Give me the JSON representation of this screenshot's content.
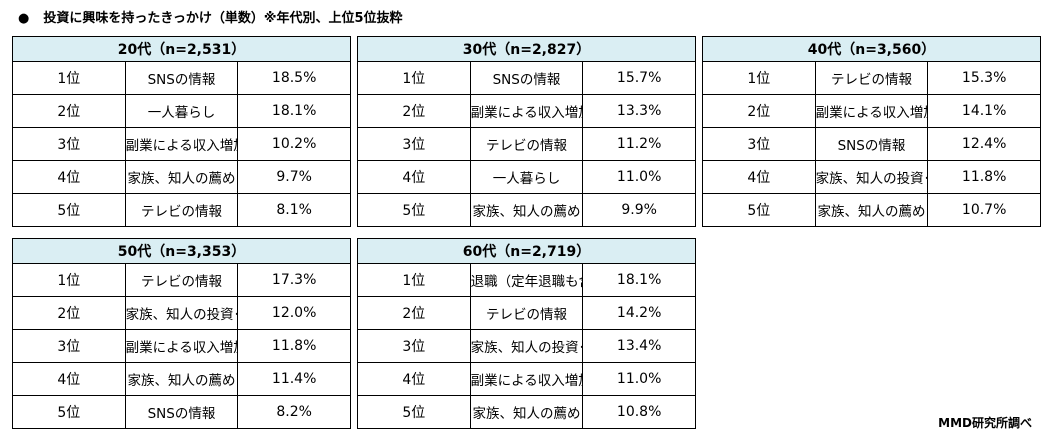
{
  "title": "投資に興味を持ったきっかけ（単数）※年代別、上位5位抜粋",
  "credit": "MMD研究所調べ",
  "colors": {
    "header_bg": "#DAEEF3",
    "border": "#000000"
  },
  "tables": [
    {
      "header": "20代（n=2,531）",
      "rows": [
        [
          "1位",
          "SNSの情報",
          "18.5%"
        ],
        [
          "2位",
          "一人暮らし",
          "18.1%"
        ],
        [
          "3位",
          "副業による収入増加",
          "10.2%"
        ],
        [
          "4位",
          "家族、知人の薦め",
          "9.7%"
        ],
        [
          "5位",
          "テレビの情報",
          "8.1%"
        ]
      ]
    },
    {
      "header": "30代（n=2,827）",
      "rows": [
        [
          "1位",
          "SNSの情報",
          "15.7%"
        ],
        [
          "2位",
          "副業による収入増加",
          "13.3%"
        ],
        [
          "3位",
          "テレビの情報",
          "11.2%"
        ],
        [
          "4位",
          "一人暮らし",
          "11.0%"
        ],
        [
          "5位",
          "家族、知人の薦め",
          "9.9%"
        ]
      ]
    },
    {
      "header": "40代（n=3,560）",
      "rows": [
        [
          "1位",
          "テレビの情報",
          "15.3%"
        ],
        [
          "2位",
          "副業による収入増加",
          "14.1%"
        ],
        [
          "3位",
          "SNSの情報",
          "12.4%"
        ],
        [
          "4位",
          "家族、知人の投資･資産運用",
          "11.8%"
        ],
        [
          "5位",
          "家族、知人の薦め",
          "10.7%"
        ]
      ]
    },
    {
      "header": "50代（n=3,353）",
      "rows": [
        [
          "1位",
          "テレビの情報",
          "17.3%"
        ],
        [
          "2位",
          "家族、知人の投資･資産運用",
          "12.0%"
        ],
        [
          "3位",
          "副業による収入増加",
          "11.8%"
        ],
        [
          "4位",
          "家族、知人の薦め",
          "11.4%"
        ],
        [
          "5位",
          "SNSの情報",
          "8.2%"
        ]
      ]
    },
    {
      "header": "60代（n=2,719）",
      "rows": [
        [
          "1位",
          "退職（定年退職も含む）",
          "18.1%"
        ],
        [
          "2位",
          "テレビの情報",
          "14.2%"
        ],
        [
          "3位",
          "家族、知人の投資･資産運用",
          "13.4%"
        ],
        [
          "4位",
          "副業による収入増加",
          "11.0%"
        ],
        [
          "5位",
          "家族、知人の薦め",
          "10.8%"
        ]
      ]
    }
  ]
}
